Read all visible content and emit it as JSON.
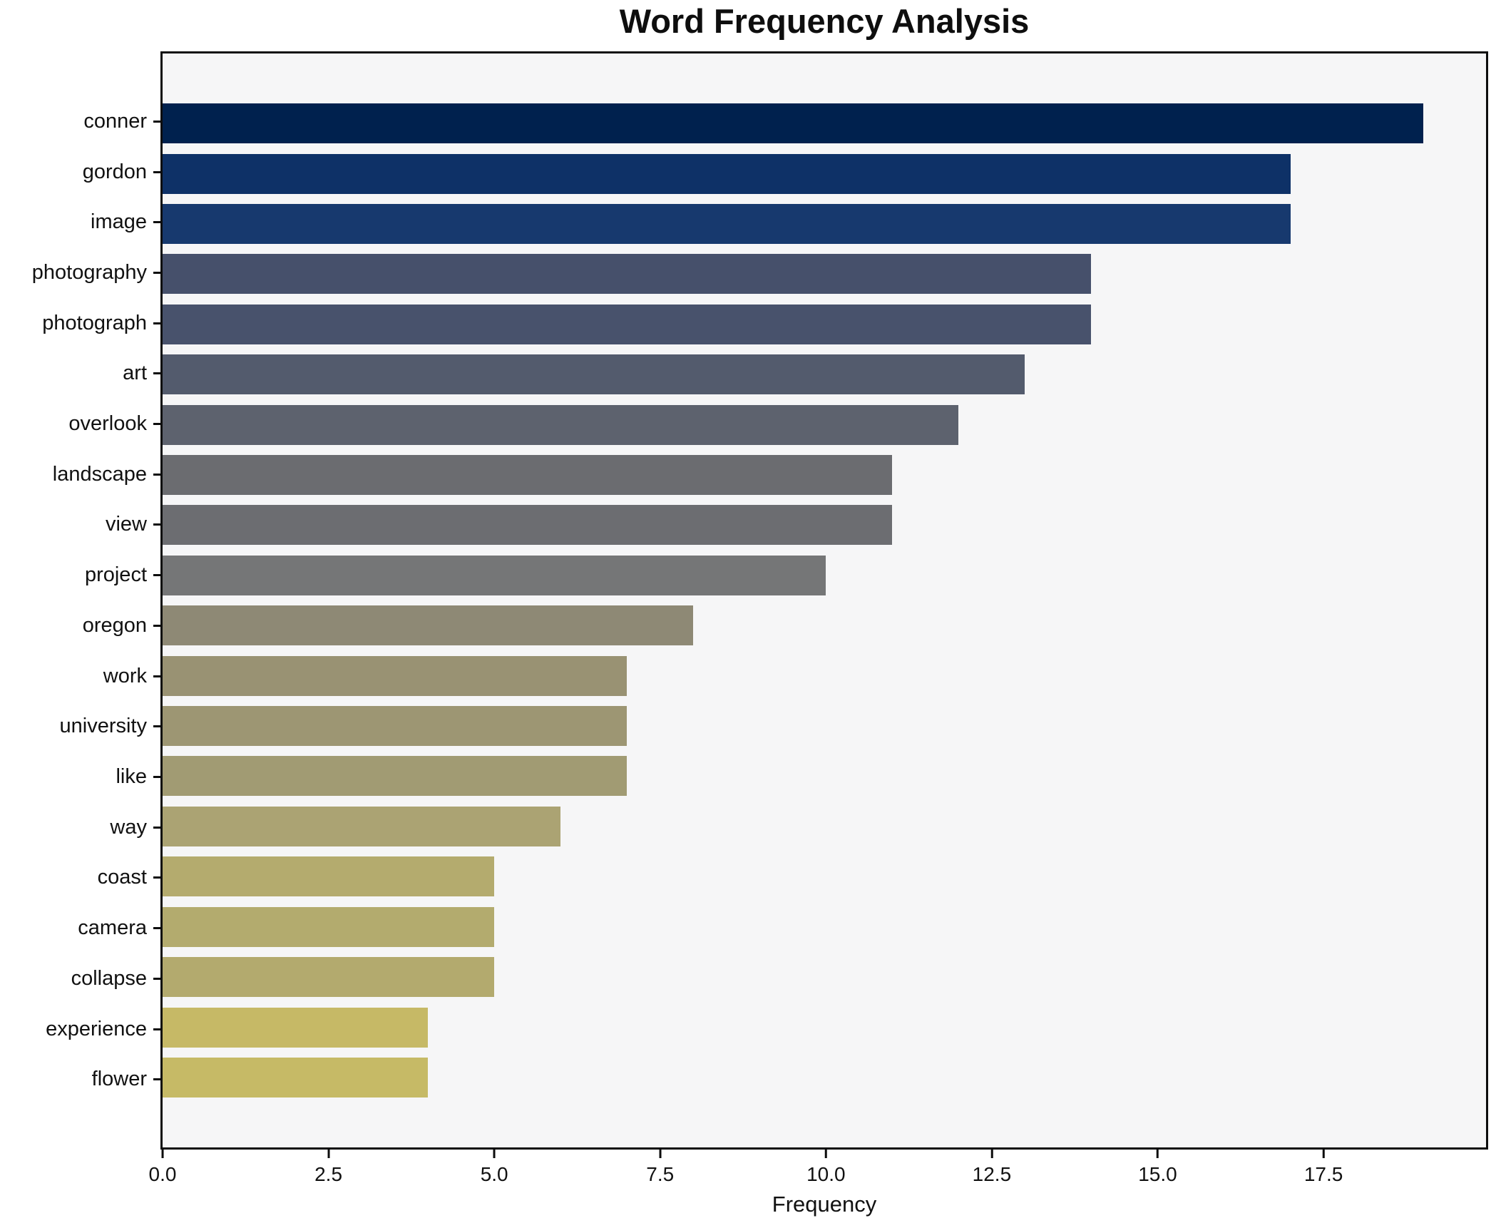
{
  "title": "Word Frequency Analysis",
  "axis": {
    "xlabel": "Frequency",
    "x_tick_labels": [
      "0.0",
      "2.5",
      "5.0",
      "7.5",
      "10.0",
      "12.5",
      "15.0",
      "17.5"
    ]
  },
  "colors": {
    "figure_background": "#ffffff",
    "plot_background": "#f6f6f7",
    "spine": "#0d0d0d",
    "text": "#111111"
  },
  "chart_data": {
    "type": "bar",
    "orientation": "horizontal",
    "title": "Word Frequency Analysis",
    "xlabel": "Frequency",
    "ylabel": "",
    "categories": [
      "conner",
      "gordon",
      "image",
      "photography",
      "photograph",
      "art",
      "overlook",
      "landscape",
      "view",
      "project",
      "oregon",
      "work",
      "university",
      "like",
      "way",
      "coast",
      "camera",
      "collapse",
      "experience",
      "flower"
    ],
    "values": [
      19,
      17,
      17,
      14,
      14,
      13,
      12,
      11,
      11,
      10,
      8,
      7,
      7,
      7,
      6,
      5,
      5,
      5,
      4,
      4
    ],
    "bar_colors": [
      "#00214e",
      "#0e3167",
      "#17396e",
      "#46506b",
      "#48526c",
      "#535b6d",
      "#5d626e",
      "#6b6c70",
      "#6c6d71",
      "#757677",
      "#8e8975",
      "#999273",
      "#9d9673",
      "#a19b73",
      "#aba373",
      "#b4ab6e",
      "#b3ab6e",
      "#b3aa6e",
      "#c6b966",
      "#c6ba66"
    ],
    "xlim": [
      0,
      19.95
    ],
    "x_tick_values": [
      0,
      2.5,
      5,
      7.5,
      10,
      12.5,
      15,
      17.5
    ],
    "grid": false,
    "legend": "none",
    "colormap": "cividis"
  }
}
